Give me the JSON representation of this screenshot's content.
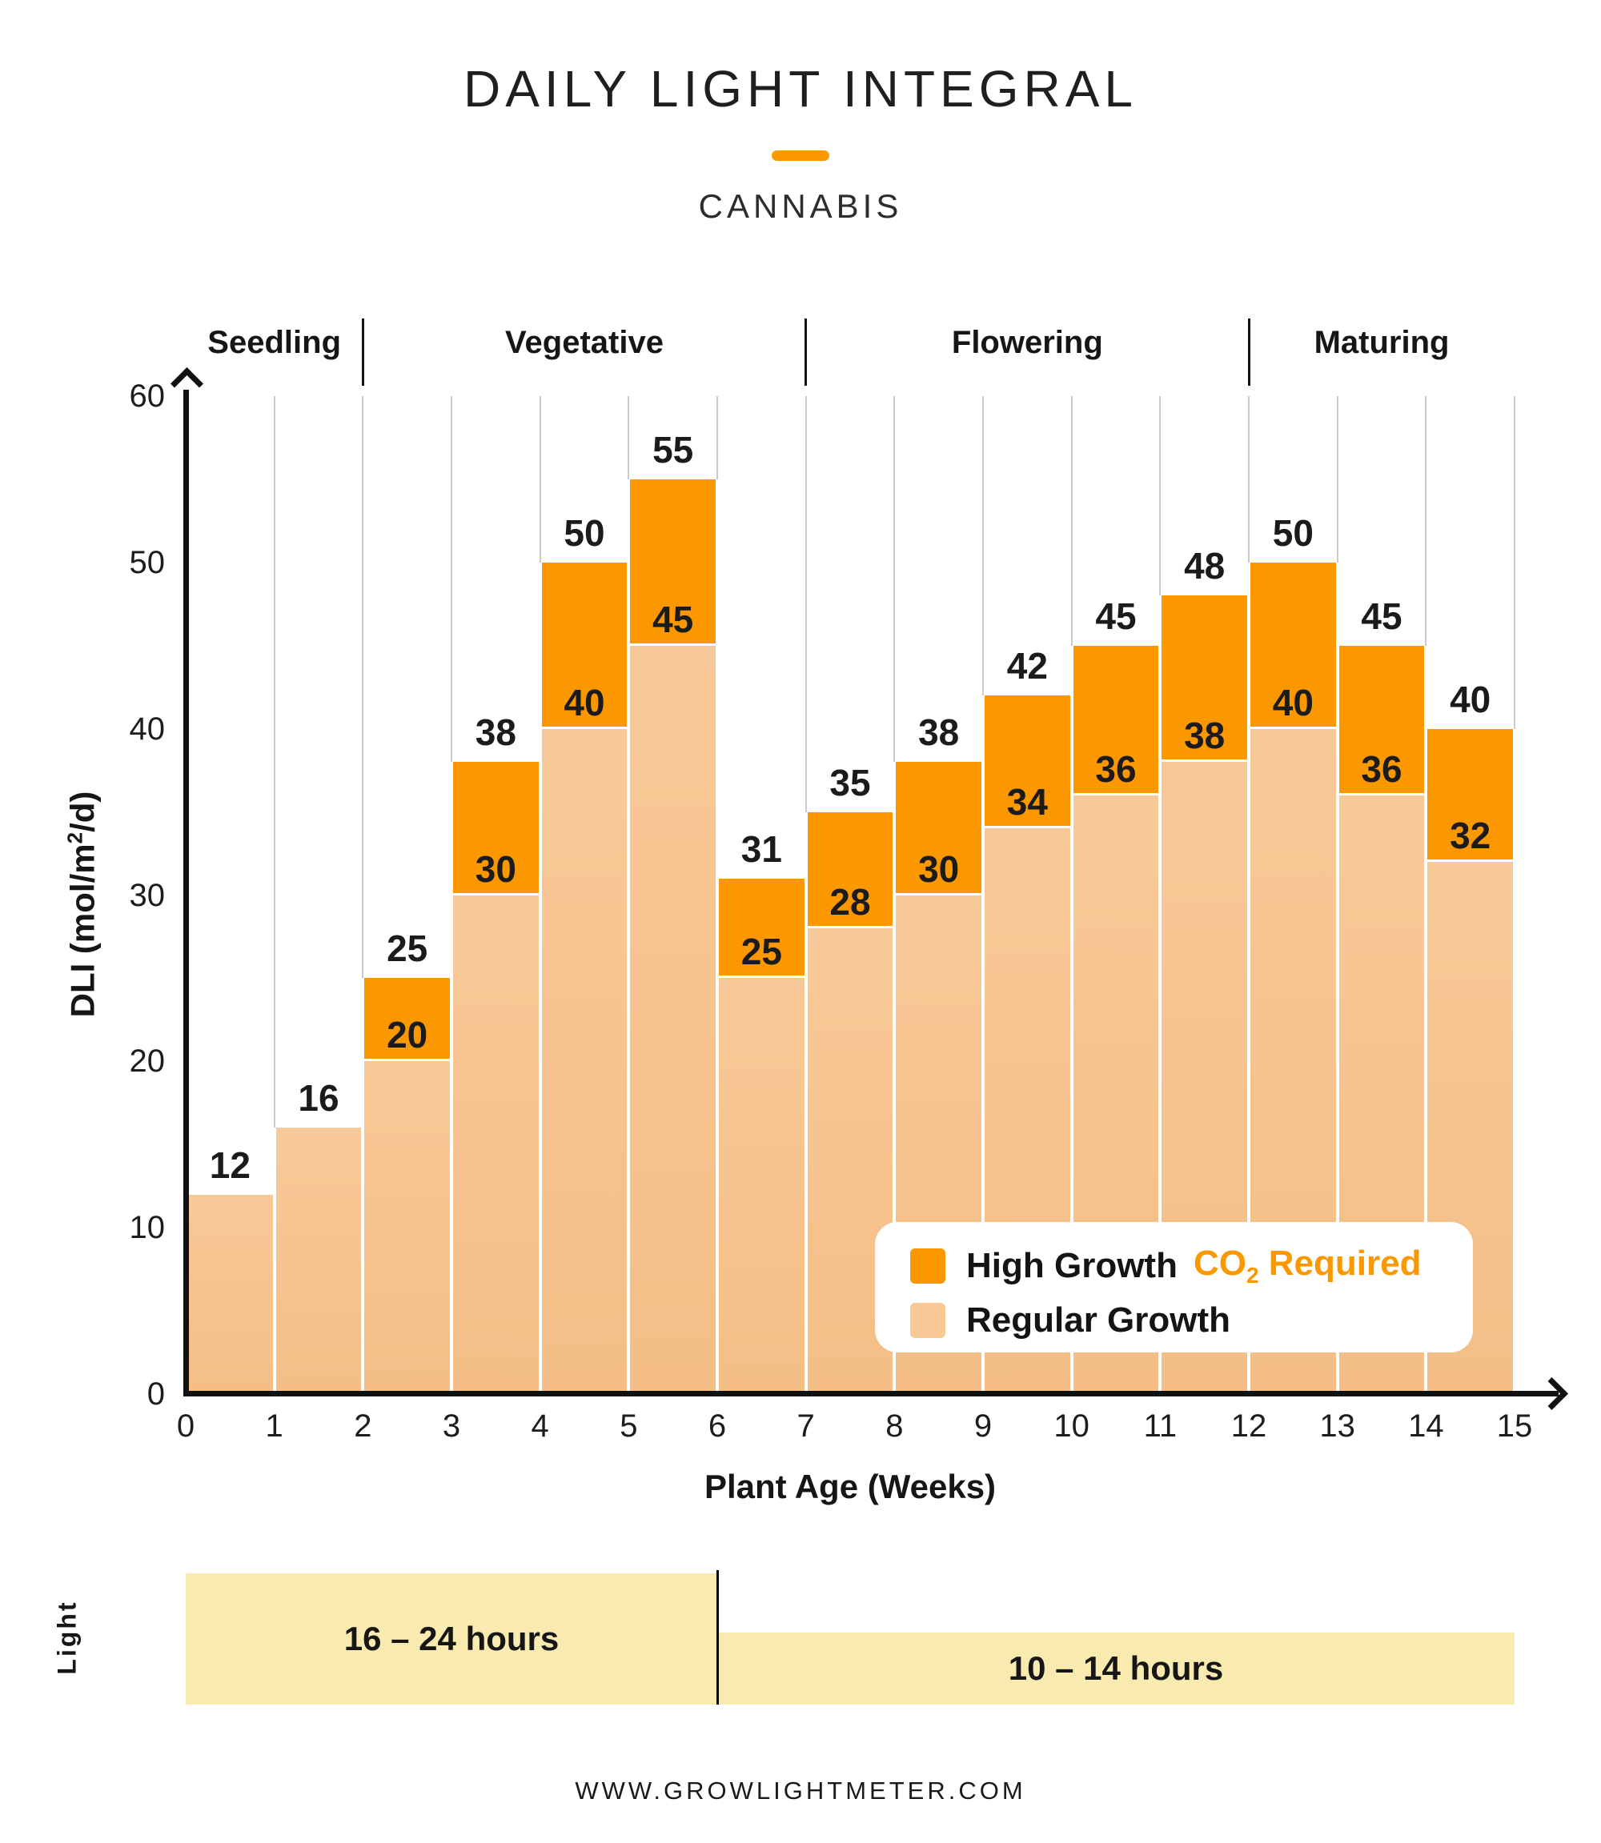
{
  "header": {
    "title": "DAILY LIGHT INTEGRAL",
    "subtitle": "CANNABIS"
  },
  "colors": {
    "accent_orange": "#FB9800",
    "high_growth_bar": "#FB9800",
    "regular_growth_bar_top": "#F8C998",
    "regular_growth_bar_bottom": "#F4BE86",
    "light_schedule_block": "#F9EAB0",
    "gridline": "#CBCBCB",
    "text_dark": "#1B1B1B"
  },
  "chart_data": {
    "type": "bar",
    "stacked": true,
    "title": "Daily Light Integral — Cannabis",
    "xlabel": "Plant Age (Weeks)",
    "ylabel": "DLI (mol/m²/d)",
    "ylabel_parts": {
      "pre": "DLI (mol/m",
      "sup": "2",
      "post": "/d)"
    },
    "xlim": [
      0,
      15
    ],
    "ylim": [
      0,
      60
    ],
    "xticks": [
      0,
      1,
      2,
      3,
      4,
      5,
      6,
      7,
      8,
      9,
      10,
      11,
      12,
      13,
      14,
      15
    ],
    "yticks": [
      0,
      10,
      20,
      30,
      40,
      50,
      60
    ],
    "grid": "vertical gridline at each week",
    "bar_span_weeks": 1,
    "week_start": [
      0,
      1,
      2,
      3,
      4,
      5,
      6,
      7,
      8,
      9,
      10,
      11,
      12,
      13,
      14
    ],
    "series": [
      {
        "name": "Regular Growth",
        "color": "#F8C996",
        "values": [
          12,
          16,
          20,
          30,
          40,
          45,
          25,
          28,
          30,
          34,
          36,
          38,
          40,
          36,
          32
        ]
      },
      {
        "name": "High Growth (CO₂ Required)",
        "color": "#FB9800",
        "values_are": "bar totals",
        "values": [
          12,
          16,
          25,
          38,
          50,
          55,
          31,
          35,
          38,
          42,
          45,
          48,
          50,
          45,
          40
        ]
      }
    ],
    "phase_bands": [
      {
        "label": "Seedling",
        "start_week": 0,
        "end_week": 2
      },
      {
        "label": "Vegetative",
        "start_week": 2,
        "end_week": 7
      },
      {
        "label": "Flowering",
        "start_week": 7,
        "end_week": 12
      },
      {
        "label": "Maturing",
        "start_week": 12,
        "end_week": 15
      }
    ],
    "legend": {
      "position": "inside lower right",
      "items": [
        {
          "label": "High Growth",
          "extra": {
            "pre": "CO",
            "sub": "2",
            "post": " Required"
          },
          "color": "#FB9800"
        },
        {
          "label": "Regular Growth",
          "color": "#F8C996"
        }
      ]
    }
  },
  "light_schedule": {
    "axis_label": "Light",
    "blocks": [
      {
        "label": "16 – 24 hours",
        "start_week": 0,
        "end_week": 6,
        "tall": true
      },
      {
        "label": "10 – 14 hours",
        "start_week": 6,
        "end_week": 15,
        "tall": false
      }
    ]
  },
  "footer": {
    "website": "WWW.GROWLIGHTMETER.COM"
  }
}
